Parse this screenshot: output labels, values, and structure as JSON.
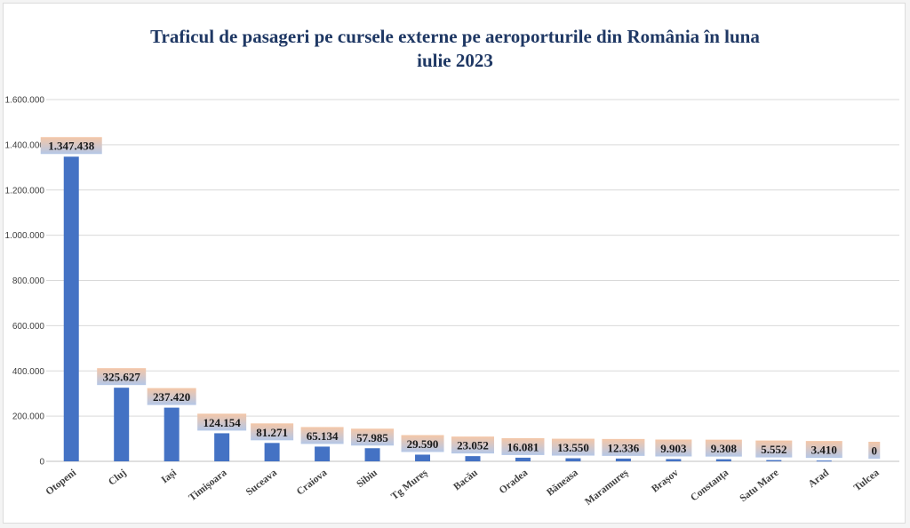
{
  "chart_data": {
    "type": "bar",
    "title": [
      "Traficul de pasageri pe cursele externe pe aeroporturile din România în luna",
      "iulie 2023"
    ],
    "xlabel": "",
    "ylabel": "",
    "ylim": [
      0,
      1600000
    ],
    "yticks": [
      "0",
      "200.000",
      "400.000",
      "600.000",
      "800.000",
      "1.000.000",
      "1.200.000",
      "1.400.000",
      "1.600.000"
    ],
    "ytick_values": [
      0,
      200000,
      400000,
      600000,
      800000,
      1000000,
      1200000,
      1400000,
      1600000
    ],
    "grid": true,
    "legend": "none",
    "categories": [
      "Otopeni",
      "Cluj",
      "Iași",
      "Timișoara",
      "Suceava",
      "Craiova",
      "Sibiu",
      "Tg Mureș",
      "Bacău",
      "Oradea",
      "Băneasa",
      "Maramureș",
      "Brașov",
      "Constanța",
      "Satu Mare",
      "Arad",
      "Tulcea"
    ],
    "values": [
      1347438,
      325627,
      237420,
      124154,
      81271,
      65134,
      57985,
      29590,
      23052,
      16081,
      13550,
      12336,
      9903,
      9308,
      5552,
      3410,
      0
    ],
    "data_labels": [
      "1.347.438",
      "325.627",
      "237.420",
      "124.154",
      "81.271",
      "65.134",
      "57.985",
      "29.590",
      "23.052",
      "16.081",
      "13.550",
      "12.336",
      "9.903",
      "9.308",
      "5.552",
      "3.410",
      "0"
    ],
    "colors": {
      "bar": "#4472c4",
      "label_bg_top": "#f4c7a8",
      "label_bg_bottom": "#b4c7e7",
      "title": "#1f3864",
      "grid": "#d9d9d9",
      "axis": "#bfbfbf"
    }
  }
}
